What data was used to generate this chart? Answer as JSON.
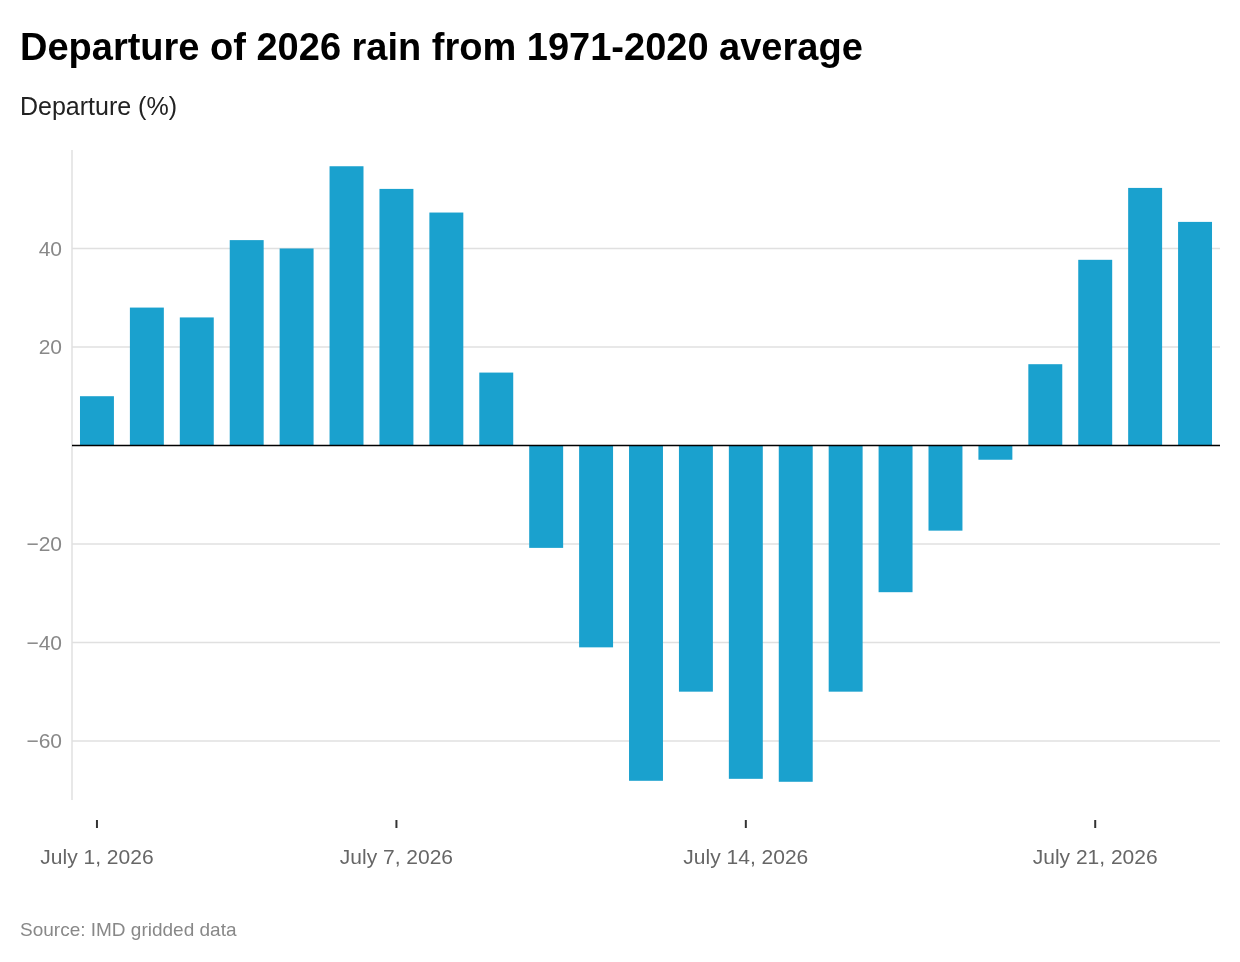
{
  "chart_data": {
    "type": "bar",
    "title": "Departure of 2026 rain from 1971-2020 average",
    "subtitle": "Departure (%)",
    "ylim": [
      -72,
      60
    ],
    "x": [
      "2026-07-01",
      "2026-07-02",
      "2026-07-03",
      "2026-07-04",
      "2026-07-05",
      "2026-07-06",
      "2026-07-07",
      "2026-07-08",
      "2026-07-09",
      "2026-07-10",
      "2026-07-11",
      "2026-07-12",
      "2026-07-13",
      "2026-07-14",
      "2026-07-15",
      "2026-07-16",
      "2026-07-17",
      "2026-07-18",
      "2026-07-19",
      "2026-07-20",
      "2026-07-21",
      "2026-07-22",
      "2026-07-23"
    ],
    "values": [
      10,
      28,
      26,
      41.7,
      40,
      56.7,
      52.1,
      47.3,
      14.8,
      -20.8,
      -41,
      -68.1,
      -50,
      -67.7,
      -68.3,
      -50,
      -29.8,
      -17.3,
      -2.9,
      16.5,
      37.7,
      52.3,
      45.4
    ],
    "color": "#1aa1ce",
    "xlim": [
      "2026-06-30T12:00",
      "2026-07-23T12:00"
    ],
    "xticks": [
      {
        "value": "2026-07-01",
        "label": "July 1, 2026"
      },
      {
        "value": "2026-07-07",
        "label": "July 7, 2026"
      },
      {
        "value": "2026-07-14",
        "label": "July 14, 2026"
      },
      {
        "value": "2026-07-21",
        "label": "July 21, 2026"
      }
    ],
    "yticks": [
      -60,
      -40,
      -20,
      {
        "value": 0,
        "label": null
      },
      20,
      40
    ],
    "grid": "y",
    "annotations": [
      "Source: IMD gridded data"
    ]
  }
}
